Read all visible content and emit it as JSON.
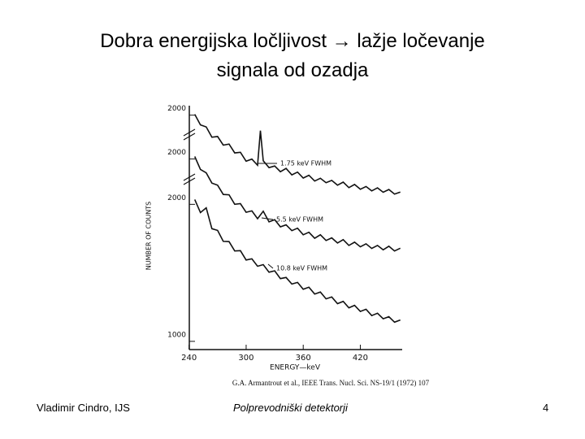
{
  "title": [
    "Dobra energijska ločljivost → lažje ločevanje",
    "signala od ozadja"
  ],
  "footer": {
    "left": "Vladimir Cindro, IJS",
    "center": "Polprevodniški detektorji",
    "right": "4"
  },
  "chart_data": {
    "type": "line",
    "y_label": "NUMBER OF COUNTS",
    "x_label": "ENERGY—keV",
    "source": "G.A. Armantrout et al., IEEE Trans. Nucl. Sci. NS-19/1 (1972) 107",
    "annotations": [
      "1.75 keV FWHM",
      "5.5 keV FWHM",
      "10.8 keV FWHM"
    ],
    "xlim": [
      236,
      464
    ],
    "xticks": [
      240,
      300,
      360,
      420
    ],
    "ylim": [
      940,
      2720
    ],
    "yticks": [
      1000,
      2000,
      {
        "value": 2331,
        "label": "2000"
      },
      {
        "value": 2651,
        "label": "2000"
      }
    ],
    "series": [
      {
        "color": "#111111",
        "x": [
          246,
          252,
          258,
          264,
          270,
          276,
          282,
          288,
          294,
          300,
          306,
          312,
          315,
          318,
          324,
          330,
          336,
          342,
          348,
          354,
          360,
          366,
          372,
          378,
          384,
          390,
          396,
          402,
          408,
          414,
          420,
          426,
          432,
          438,
          444,
          450,
          456,
          462
        ],
        "values": [
          2657,
          2580,
          2565,
          2490,
          2495,
          2432,
          2440,
          2375,
          2380,
          2315,
          2330,
          2285,
          2538,
          2318,
          2268,
          2280,
          2238,
          2262,
          2215,
          2235,
          2192,
          2212,
          2170,
          2190,
          2158,
          2175,
          2140,
          2162,
          2122,
          2145,
          2110,
          2130,
          2098,
          2120,
          2088,
          2108,
          2075,
          2090
        ]
      },
      {
        "color": "#111111",
        "x": [
          246,
          252,
          258,
          264,
          270,
          276,
          282,
          288,
          294,
          300,
          306,
          312,
          318,
          324,
          330,
          336,
          342,
          348,
          354,
          360,
          366,
          372,
          378,
          384,
          390,
          396,
          402,
          408,
          414,
          420,
          426,
          432,
          438,
          444,
          450,
          456,
          462
        ],
        "values": [
          2349,
          2255,
          2230,
          2155,
          2140,
          2072,
          2070,
          2000,
          2005,
          1942,
          1952,
          1895,
          1950,
          1872,
          1888,
          1836,
          1850,
          1808,
          1826,
          1778,
          1796,
          1752,
          1778,
          1736,
          1755,
          1718,
          1742,
          1700,
          1724,
          1690,
          1712,
          1678,
          1700,
          1668,
          1694,
          1660,
          1680
        ]
      },
      {
        "color": "#111111",
        "x": [
          246,
          252,
          258,
          264,
          270,
          276,
          282,
          288,
          294,
          300,
          306,
          312,
          318,
          324,
          330,
          336,
          342,
          348,
          354,
          360,
          366,
          372,
          378,
          384,
          390,
          396,
          402,
          408,
          414,
          420,
          426,
          432,
          438,
          444,
          450,
          456,
          462
        ],
        "values": [
          2035,
          1940,
          1975,
          1822,
          1810,
          1730,
          1728,
          1660,
          1662,
          1594,
          1602,
          1548,
          1560,
          1505,
          1515,
          1458,
          1466,
          1418,
          1430,
          1380,
          1395,
          1345,
          1360,
          1310,
          1324,
          1275,
          1292,
          1245,
          1263,
          1218,
          1234,
          1188,
          1205,
          1165,
          1180,
          1140,
          1156
        ]
      }
    ]
  }
}
